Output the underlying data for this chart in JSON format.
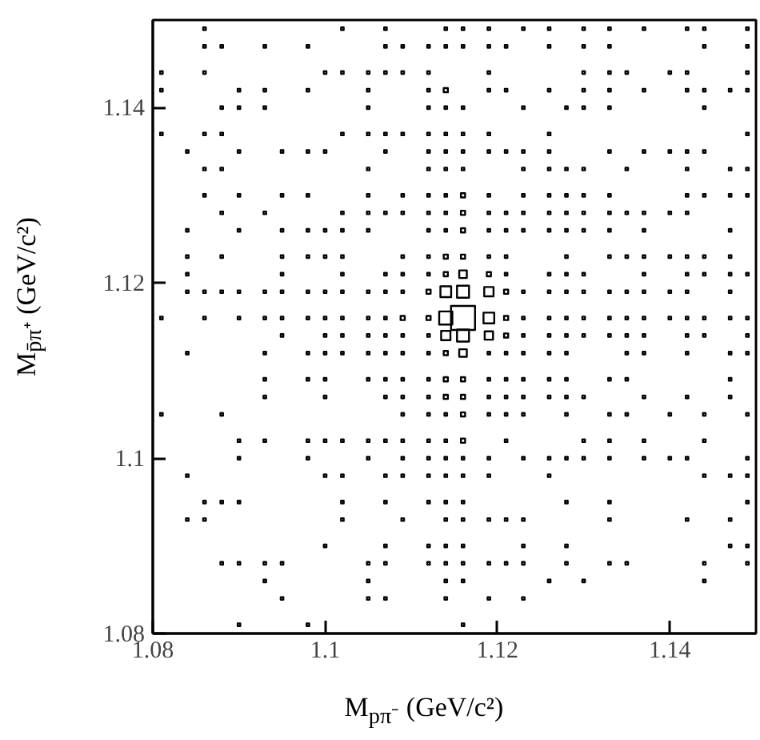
{
  "chart_data": {
    "type": "bubble",
    "xlabel": "M$_{pπ⁻}$ (GeV/c²)",
    "ylabel": "M$_{p̄π⁺}$ (GeV/c²)",
    "xlim": [
      1.08,
      1.15
    ],
    "ylim": [
      1.08,
      1.15
    ],
    "xticks": [
      1.08,
      1.1,
      1.12,
      1.14
    ],
    "yticks": [
      1.08,
      1.1,
      1.12,
      1.14
    ],
    "marker": "square",
    "grid": false,
    "series": [
      {
        "color": "#000000",
        "x": [
          1.086,
          1.102,
          1.107,
          1.114,
          1.116,
          1.119,
          1.123,
          1.126,
          1.13,
          1.133,
          1.137,
          1.142,
          1.144,
          1.149
        ],
        "values": [
          1.149,
          1.149,
          1.149,
          1.149,
          1.149,
          1.149,
          1.149,
          1.149,
          1.149,
          1.149,
          1.149,
          1.149,
          1.149,
          1.149
        ],
        "sizes": [
          0.012,
          0.012,
          0.012,
          0.012,
          0.012,
          0.012,
          0.012,
          0.012,
          0.012,
          0.012,
          0.012,
          0.012,
          0.012,
          0.012
        ]
      },
      {
        "color": "#000000",
        "x": [
          1.086,
          1.088,
          1.093,
          1.098,
          1.107,
          1.109,
          1.112,
          1.114,
          1.116,
          1.119,
          1.121,
          1.126,
          1.13,
          1.133,
          1.144,
          1.149
        ],
        "values": [
          1.147,
          1.147,
          1.147,
          1.147,
          1.147,
          1.147,
          1.147,
          1.147,
          1.147,
          1.147,
          1.147,
          1.147,
          1.147,
          1.147,
          1.147,
          1.147
        ],
        "sizes": [
          0.012,
          0.012,
          0.012,
          0.012,
          0.012,
          0.012,
          0.012,
          0.012,
          0.012,
          0.012,
          0.012,
          0.012,
          0.012,
          0.012,
          0.012,
          0.012
        ]
      },
      {
        "color": "#000000",
        "x": [
          1.081,
          1.086,
          1.1,
          1.102,
          1.105,
          1.107,
          1.109,
          1.112,
          1.119,
          1.13,
          1.133,
          1.135,
          1.14,
          1.142,
          1.149
        ],
        "values": [
          1.144,
          1.144,
          1.144,
          1.144,
          1.144,
          1.144,
          1.144,
          1.144,
          1.144,
          1.144,
          1.144,
          1.144,
          1.144,
          1.144,
          1.144
        ],
        "sizes": [
          0.012,
          0.012,
          0.012,
          0.012,
          0.012,
          0.012,
          0.012,
          0.012,
          0.012,
          0.012,
          0.012,
          0.012,
          0.012,
          0.012,
          0.012
        ]
      },
      {
        "color": "#000000",
        "x": [
          1.081,
          1.09,
          1.093,
          1.098,
          1.105,
          1.112,
          1.114,
          1.119,
          1.121,
          1.126,
          1.13,
          1.133,
          1.137,
          1.142,
          1.144,
          1.147,
          1.149
        ],
        "values": [
          1.142,
          1.142,
          1.142,
          1.142,
          1.142,
          1.142,
          1.142,
          1.142,
          1.142,
          1.142,
          1.142,
          1.142,
          1.142,
          1.142,
          1.142,
          1.142,
          1.142
        ],
        "sizes": [
          0.012,
          0.012,
          0.012,
          0.012,
          0.012,
          0.012,
          0.03,
          0.012,
          0.012,
          0.012,
          0.012,
          0.012,
          0.012,
          0.012,
          0.012,
          0.012,
          0.012
        ]
      },
      {
        "color": "#000000",
        "x": [
          1.088,
          1.09,
          1.093,
          1.105,
          1.112,
          1.114,
          1.116,
          1.123,
          1.128,
          1.13,
          1.133,
          1.144
        ],
        "values": [
          1.14,
          1.14,
          1.14,
          1.14,
          1.14,
          1.14,
          1.14,
          1.14,
          1.14,
          1.14,
          1.14,
          1.14
        ],
        "sizes": [
          0.012,
          0.012,
          0.012,
          0.012,
          0.012,
          0.012,
          0.012,
          0.012,
          0.012,
          0.012,
          0.012,
          0.012
        ]
      },
      {
        "color": "#000000",
        "x": [
          1.081,
          1.086,
          1.088,
          1.102,
          1.105,
          1.107,
          1.109,
          1.112,
          1.114,
          1.116,
          1.119,
          1.126,
          1.149
        ],
        "values": [
          1.137,
          1.137,
          1.137,
          1.137,
          1.137,
          1.137,
          1.137,
          1.137,
          1.137,
          1.137,
          1.137,
          1.137,
          1.137
        ],
        "sizes": [
          0.012,
          0.012,
          0.012,
          0.012,
          0.012,
          0.012,
          0.012,
          0.012,
          0.012,
          0.012,
          0.012,
          0.012,
          0.012
        ]
      },
      {
        "color": "#000000",
        "x": [
          1.084,
          1.09,
          1.095,
          1.098,
          1.1,
          1.107,
          1.112,
          1.114,
          1.116,
          1.119,
          1.121,
          1.123,
          1.126,
          1.133,
          1.137,
          1.14,
          1.142,
          1.144
        ],
        "values": [
          1.135,
          1.135,
          1.135,
          1.135,
          1.135,
          1.135,
          1.135,
          1.135,
          1.135,
          1.135,
          1.135,
          1.135,
          1.135,
          1.135,
          1.135,
          1.135,
          1.135,
          1.135
        ],
        "sizes": [
          0.012,
          0.012,
          0.012,
          0.012,
          0.012,
          0.012,
          0.012,
          0.012,
          0.012,
          0.012,
          0.012,
          0.012,
          0.012,
          0.012,
          0.012,
          0.012,
          0.012,
          0.012
        ]
      },
      {
        "color": "#000000",
        "x": [
          1.086,
          1.088,
          1.105,
          1.112,
          1.114,
          1.116,
          1.123,
          1.126,
          1.128,
          1.13,
          1.135,
          1.142,
          1.147,
          1.149
        ],
        "values": [
          1.133,
          1.133,
          1.133,
          1.133,
          1.133,
          1.133,
          1.133,
          1.133,
          1.133,
          1.133,
          1.133,
          1.133,
          1.133,
          1.133
        ],
        "sizes": [
          0.012,
          0.012,
          0.012,
          0.012,
          0.012,
          0.012,
          0.012,
          0.012,
          0.012,
          0.012,
          0.012,
          0.012,
          0.012,
          0.012
        ]
      },
      {
        "color": "#000000",
        "x": [
          1.086,
          1.09,
          1.095,
          1.098,
          1.105,
          1.109,
          1.112,
          1.114,
          1.116,
          1.119,
          1.123,
          1.126,
          1.128,
          1.13,
          1.133,
          1.142,
          1.144,
          1.147,
          1.149
        ],
        "values": [
          1.13,
          1.13,
          1.13,
          1.13,
          1.13,
          1.13,
          1.13,
          1.13,
          1.13,
          1.13,
          1.13,
          1.13,
          1.13,
          1.13,
          1.13,
          1.13,
          1.13,
          1.13,
          1.13
        ],
        "sizes": [
          0.012,
          0.012,
          0.012,
          0.012,
          0.012,
          0.012,
          0.012,
          0.012,
          0.03,
          0.012,
          0.012,
          0.012,
          0.012,
          0.012,
          0.012,
          0.012,
          0.012,
          0.012,
          0.012
        ]
      },
      {
        "color": "#000000",
        "x": [
          1.088,
          1.093,
          1.102,
          1.105,
          1.107,
          1.109,
          1.112,
          1.114,
          1.116,
          1.119,
          1.121,
          1.123,
          1.126,
          1.128,
          1.13,
          1.133,
          1.135,
          1.137,
          1.14,
          1.142
        ],
        "values": [
          1.128,
          1.128,
          1.128,
          1.128,
          1.128,
          1.128,
          1.128,
          1.128,
          1.128,
          1.128,
          1.128,
          1.128,
          1.128,
          1.128,
          1.128,
          1.128,
          1.128,
          1.128,
          1.128,
          1.128
        ],
        "sizes": [
          0.012,
          0.012,
          0.012,
          0.012,
          0.012,
          0.012,
          0.012,
          0.012,
          0.03,
          0.012,
          0.012,
          0.012,
          0.012,
          0.012,
          0.012,
          0.012,
          0.012,
          0.012,
          0.012,
          0.012
        ]
      },
      {
        "color": "#000000",
        "x": [
          1.084,
          1.09,
          1.095,
          1.098,
          1.1,
          1.102,
          1.105,
          1.112,
          1.114,
          1.116,
          1.119,
          1.121,
          1.123,
          1.126,
          1.128,
          1.13,
          1.133,
          1.137,
          1.147
        ],
        "values": [
          1.126,
          1.126,
          1.126,
          1.126,
          1.126,
          1.126,
          1.126,
          1.126,
          1.126,
          1.126,
          1.126,
          1.126,
          1.126,
          1.126,
          1.126,
          1.126,
          1.126,
          1.126,
          1.126
        ],
        "sizes": [
          0.012,
          0.012,
          0.012,
          0.012,
          0.012,
          0.012,
          0.012,
          0.012,
          0.012,
          0.03,
          0.012,
          0.012,
          0.012,
          0.012,
          0.012,
          0.012,
          0.012,
          0.012,
          0.012
        ]
      },
      {
        "color": "#000000",
        "x": [
          1.084,
          1.088,
          1.095,
          1.098,
          1.1,
          1.102,
          1.109,
          1.112,
          1.114,
          1.116,
          1.119,
          1.121,
          1.128,
          1.133,
          1.135,
          1.137,
          1.14,
          1.142,
          1.144,
          1.147
        ],
        "values": [
          1.123,
          1.123,
          1.123,
          1.123,
          1.123,
          1.123,
          1.123,
          1.123,
          1.123,
          1.123,
          1.123,
          1.123,
          1.123,
          1.123,
          1.123,
          1.123,
          1.123,
          1.123,
          1.123,
          1.123
        ],
        "sizes": [
          0.012,
          0.012,
          0.012,
          0.012,
          0.012,
          0.012,
          0.012,
          0.012,
          0.03,
          0.03,
          0.012,
          0.012,
          0.012,
          0.012,
          0.012,
          0.012,
          0.012,
          0.012,
          0.012,
          0.012
        ]
      },
      {
        "color": "#000000",
        "x": [
          1.084,
          1.095,
          1.102,
          1.107,
          1.109,
          1.112,
          1.114,
          1.116,
          1.119,
          1.121,
          1.126,
          1.128,
          1.13,
          1.137,
          1.142,
          1.144,
          1.147,
          1.149
        ],
        "values": [
          1.121,
          1.121,
          1.121,
          1.121,
          1.121,
          1.121,
          1.121,
          1.121,
          1.121,
          1.121,
          1.121,
          1.121,
          1.121,
          1.121,
          1.121,
          1.121,
          1.121,
          1.121
        ],
        "sizes": [
          0.012,
          0.012,
          0.012,
          0.012,
          0.012,
          0.012,
          0.03,
          0.1,
          0.03,
          0.012,
          0.012,
          0.012,
          0.012,
          0.012,
          0.012,
          0.012,
          0.012,
          0.012
        ]
      },
      {
        "color": "#000000",
        "x": [
          1.084,
          1.086,
          1.088,
          1.09,
          1.093,
          1.095,
          1.098,
          1.1,
          1.102,
          1.105,
          1.107,
          1.109,
          1.112,
          1.114,
          1.116,
          1.119,
          1.121,
          1.123,
          1.126,
          1.128,
          1.13,
          1.133,
          1.135,
          1.137,
          1.14,
          1.142,
          1.147
        ],
        "values": [
          1.119,
          1.119,
          1.119,
          1.119,
          1.119,
          1.119,
          1.119,
          1.119,
          1.119,
          1.119,
          1.119,
          1.119,
          1.119,
          1.119,
          1.119,
          1.119,
          1.119,
          1.119,
          1.119,
          1.119,
          1.119,
          1.119,
          1.119,
          1.119,
          1.119,
          1.119,
          1.119
        ],
        "sizes": [
          0.012,
          0.012,
          0.012,
          0.012,
          0.012,
          0.012,
          0.012,
          0.012,
          0.012,
          0.012,
          0.012,
          0.012,
          0.03,
          0.2,
          0.25,
          0.15,
          0.03,
          0.012,
          0.012,
          0.012,
          0.012,
          0.012,
          0.012,
          0.012,
          0.012,
          0.012,
          0.012
        ]
      },
      {
        "color": "#000000",
        "x": [
          1.081,
          1.086,
          1.09,
          1.093,
          1.095,
          1.098,
          1.1,
          1.102,
          1.105,
          1.107,
          1.109,
          1.112,
          1.114,
          1.116,
          1.119,
          1.121,
          1.123,
          1.126,
          1.128,
          1.13,
          1.133,
          1.135,
          1.137,
          1.14,
          1.142,
          1.144,
          1.147,
          1.149
        ],
        "values": [
          1.116,
          1.116,
          1.116,
          1.116,
          1.116,
          1.116,
          1.116,
          1.116,
          1.116,
          1.116,
          1.116,
          1.116,
          1.116,
          1.116,
          1.116,
          1.116,
          1.116,
          1.116,
          1.116,
          1.116,
          1.116,
          1.116,
          1.116,
          1.116,
          1.116,
          1.116,
          1.116,
          1.116
        ],
        "sizes": [
          0.012,
          0.012,
          0.012,
          0.012,
          0.012,
          0.012,
          0.012,
          0.012,
          0.012,
          0.012,
          0.03,
          0.03,
          0.3,
          1,
          0.2,
          0.03,
          0.012,
          0.012,
          0.012,
          0.012,
          0.012,
          0.012,
          0.012,
          0.012,
          0.012,
          0.012,
          0.012,
          0.012
        ]
      },
      {
        "color": "#000000",
        "x": [
          1.095,
          1.1,
          1.102,
          1.105,
          1.107,
          1.109,
          1.112,
          1.114,
          1.116,
          1.119,
          1.121,
          1.123,
          1.126,
          1.128,
          1.13,
          1.133,
          1.135,
          1.137,
          1.142,
          1.144,
          1.149
        ],
        "values": [
          1.114,
          1.114,
          1.114,
          1.114,
          1.114,
          1.114,
          1.114,
          1.114,
          1.114,
          1.114,
          1.114,
          1.114,
          1.114,
          1.114,
          1.114,
          1.114,
          1.114,
          1.114,
          1.114,
          1.114,
          1.114
        ],
        "sizes": [
          0.012,
          0.012,
          0.012,
          0.012,
          0.012,
          0.012,
          0.012,
          0.15,
          0.25,
          0.12,
          0.03,
          0.012,
          0.012,
          0.012,
          0.012,
          0.012,
          0.012,
          0.012,
          0.012,
          0.012,
          0.012
        ]
      },
      {
        "color": "#000000",
        "x": [
          1.084,
          1.093,
          1.098,
          1.1,
          1.102,
          1.105,
          1.107,
          1.109,
          1.112,
          1.114,
          1.116,
          1.119,
          1.121,
          1.123,
          1.126,
          1.128,
          1.135,
          1.137,
          1.142,
          1.147,
          1.149
        ],
        "values": [
          1.112,
          1.112,
          1.112,
          1.112,
          1.112,
          1.112,
          1.112,
          1.112,
          1.112,
          1.112,
          1.112,
          1.112,
          1.112,
          1.112,
          1.112,
          1.112,
          1.112,
          1.112,
          1.112,
          1.112,
          1.112
        ],
        "sizes": [
          0.012,
          0.012,
          0.012,
          0.012,
          0.012,
          0.012,
          0.012,
          0.012,
          0.012,
          0.03,
          0.1,
          0.012,
          0.012,
          0.012,
          0.012,
          0.012,
          0.012,
          0.012,
          0.012,
          0.012,
          0.012
        ]
      },
      {
        "color": "#000000",
        "x": [
          1.093,
          1.098,
          1.1,
          1.105,
          1.107,
          1.109,
          1.112,
          1.114,
          1.116,
          1.119,
          1.121,
          1.123,
          1.126,
          1.128,
          1.133,
          1.135,
          1.147
        ],
        "values": [
          1.109,
          1.109,
          1.109,
          1.109,
          1.109,
          1.109,
          1.109,
          1.109,
          1.109,
          1.109,
          1.109,
          1.109,
          1.109,
          1.109,
          1.109,
          1.109,
          1.109
        ],
        "sizes": [
          0.012,
          0.012,
          0.012,
          0.012,
          0.012,
          0.012,
          0.012,
          0.03,
          0.03,
          0.012,
          0.012,
          0.012,
          0.012,
          0.012,
          0.012,
          0.012,
          0.012
        ]
      },
      {
        "color": "#000000",
        "x": [
          1.093,
          1.1,
          1.107,
          1.109,
          1.112,
          1.114,
          1.116,
          1.119,
          1.121,
          1.123,
          1.126,
          1.128,
          1.13,
          1.137,
          1.142,
          1.147
        ],
        "values": [
          1.107,
          1.107,
          1.107,
          1.107,
          1.107,
          1.107,
          1.107,
          1.107,
          1.107,
          1.107,
          1.107,
          1.107,
          1.107,
          1.107,
          1.107,
          1.107
        ],
        "sizes": [
          0.012,
          0.012,
          0.012,
          0.012,
          0.012,
          0.03,
          0.03,
          0.012,
          0.012,
          0.012,
          0.012,
          0.012,
          0.012,
          0.012,
          0.012,
          0.012
        ]
      },
      {
        "color": "#000000",
        "x": [
          1.081,
          1.088,
          1.109,
          1.112,
          1.114,
          1.116,
          1.119,
          1.121,
          1.123,
          1.128,
          1.133,
          1.135,
          1.14,
          1.144,
          1.149
        ],
        "values": [
          1.105,
          1.105,
          1.105,
          1.105,
          1.105,
          1.105,
          1.105,
          1.105,
          1.105,
          1.105,
          1.105,
          1.105,
          1.105,
          1.105,
          1.105
        ],
        "sizes": [
          0.012,
          0.012,
          0.012,
          0.012,
          0.012,
          0.03,
          0.012,
          0.012,
          0.012,
          0.012,
          0.012,
          0.012,
          0.012,
          0.012,
          0.012
        ]
      },
      {
        "color": "#000000",
        "x": [
          1.09,
          1.093,
          1.098,
          1.1,
          1.102,
          1.105,
          1.107,
          1.109,
          1.112,
          1.114,
          1.116,
          1.121,
          1.13,
          1.133,
          1.137,
          1.144
        ],
        "values": [
          1.102,
          1.102,
          1.102,
          1.102,
          1.102,
          1.102,
          1.102,
          1.102,
          1.102,
          1.102,
          1.102,
          1.102,
          1.102,
          1.102,
          1.102,
          1.102
        ],
        "sizes": [
          0.012,
          0.012,
          0.012,
          0.012,
          0.012,
          0.012,
          0.012,
          0.012,
          0.012,
          0.012,
          0.03,
          0.012,
          0.012,
          0.012,
          0.012,
          0.012
        ]
      },
      {
        "color": "#000000",
        "x": [
          1.09,
          1.098,
          1.105,
          1.109,
          1.112,
          1.114,
          1.116,
          1.119,
          1.123,
          1.126,
          1.128,
          1.13,
          1.133,
          1.137,
          1.14,
          1.142,
          1.149
        ],
        "values": [
          1.1,
          1.1,
          1.1,
          1.1,
          1.1,
          1.1,
          1.1,
          1.1,
          1.1,
          1.1,
          1.1,
          1.1,
          1.1,
          1.1,
          1.1,
          1.1,
          1.1
        ],
        "sizes": [
          0.012,
          0.012,
          0.012,
          0.012,
          0.012,
          0.012,
          0.012,
          0.012,
          0.012,
          0.012,
          0.012,
          0.012,
          0.012,
          0.012,
          0.012,
          0.012,
          0.012
        ]
      },
      {
        "color": "#000000",
        "x": [
          1.084,
          1.1,
          1.102,
          1.107,
          1.109,
          1.112,
          1.114,
          1.116,
          1.119,
          1.126,
          1.144,
          1.147,
          1.149
        ],
        "values": [
          1.098,
          1.098,
          1.098,
          1.098,
          1.098,
          1.098,
          1.098,
          1.098,
          1.098,
          1.098,
          1.098,
          1.098,
          1.098
        ],
        "sizes": [
          0.012,
          0.012,
          0.012,
          0.012,
          0.012,
          0.012,
          0.012,
          0.012,
          0.012,
          0.012,
          0.012,
          0.012,
          0.012
        ]
      },
      {
        "color": "#000000",
        "x": [
          1.086,
          1.088,
          1.09,
          1.102,
          1.107,
          1.112,
          1.114,
          1.116,
          1.128,
          1.133,
          1.149
        ],
        "values": [
          1.095,
          1.095,
          1.095,
          1.095,
          1.095,
          1.095,
          1.095,
          1.095,
          1.095,
          1.095,
          1.095
        ],
        "sizes": [
          0.012,
          0.012,
          0.012,
          0.012,
          0.012,
          0.012,
          0.012,
          0.012,
          0.012,
          0.012,
          0.012
        ]
      },
      {
        "color": "#000000",
        "x": [
          1.084,
          1.086,
          1.102,
          1.109,
          1.114,
          1.116,
          1.119,
          1.121,
          1.123,
          1.133,
          1.142,
          1.147
        ],
        "values": [
          1.093,
          1.093,
          1.093,
          1.093,
          1.093,
          1.093,
          1.093,
          1.093,
          1.093,
          1.093,
          1.093,
          1.093
        ],
        "sizes": [
          0.012,
          0.012,
          0.012,
          0.012,
          0.012,
          0.012,
          0.012,
          0.012,
          0.012,
          0.012,
          0.012,
          0.012
        ]
      },
      {
        "color": "#000000",
        "x": [
          1.1,
          1.107,
          1.112,
          1.114,
          1.116,
          1.123,
          1.128,
          1.147,
          1.149
        ],
        "values": [
          1.09,
          1.09,
          1.09,
          1.09,
          1.09,
          1.09,
          1.09,
          1.09,
          1.09
        ],
        "sizes": [
          0.012,
          0.012,
          0.012,
          0.012,
          0.012,
          0.012,
          0.012,
          0.012,
          0.012
        ]
      },
      {
        "color": "#000000",
        "x": [
          1.088,
          1.09,
          1.093,
          1.095,
          1.105,
          1.107,
          1.112,
          1.114,
          1.116,
          1.119,
          1.121,
          1.123,
          1.128,
          1.133,
          1.135,
          1.144,
          1.149
        ],
        "values": [
          1.088,
          1.088,
          1.088,
          1.088,
          1.088,
          1.088,
          1.088,
          1.088,
          1.088,
          1.088,
          1.088,
          1.088,
          1.088,
          1.088,
          1.088,
          1.088,
          1.088
        ],
        "sizes": [
          0.012,
          0.012,
          0.012,
          0.012,
          0.012,
          0.012,
          0.012,
          0.012,
          0.012,
          0.012,
          0.012,
          0.012,
          0.012,
          0.012,
          0.012,
          0.012,
          0.012
        ]
      },
      {
        "color": "#000000",
        "x": [
          1.093,
          1.105,
          1.114,
          1.116,
          1.126,
          1.13,
          1.144
        ],
        "values": [
          1.086,
          1.086,
          1.086,
          1.086,
          1.086,
          1.086,
          1.086
        ],
        "sizes": [
          0.012,
          0.012,
          0.012,
          0.012,
          0.012,
          0.012,
          0.012
        ]
      },
      {
        "color": "#000000",
        "x": [
          1.095,
          1.105,
          1.107,
          1.114,
          1.119,
          1.123
        ],
        "values": [
          1.084,
          1.084,
          1.084,
          1.084,
          1.084,
          1.084
        ],
        "sizes": [
          0.012,
          0.012,
          0.012,
          0.012,
          0.012,
          0.012
        ]
      },
      {
        "color": "#000000",
        "x": [
          1.09,
          1.098,
          1.116
        ],
        "values": [
          1.081,
          1.081,
          1.081
        ],
        "sizes": [
          0.012,
          0.012,
          0.012
        ]
      }
    ]
  }
}
